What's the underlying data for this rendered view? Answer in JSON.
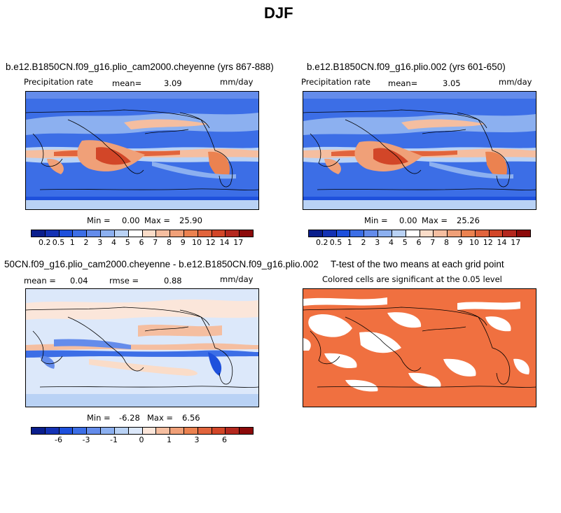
{
  "page_title": "DJF",
  "panel1": {
    "case": "b.e12.B1850CN.f09_g16.plio_cam2000.cheyenne (yrs 867-888)",
    "variable": "Precipitation rate",
    "mean_label": "mean=",
    "mean_value": "3.09",
    "units": "mm/day",
    "minmax_label": "Min =",
    "min_value": "0.00",
    "max_label": "Max =",
    "max_value": "25.90"
  },
  "panel2": {
    "case": "b.e12.B1850CN.f09_g16.plio.002 (yrs 601-650)",
    "variable": "Precipitation rate",
    "mean_label": "mean=",
    "mean_value": "3.05",
    "units": "mm/day",
    "minmax_label": "Min =",
    "min_value": "0.00",
    "max_label": "Max =",
    "max_value": "25.26"
  },
  "panel3": {
    "case": "50CN.f09_g16.plio_cam2000.cheyenne - b.e12.B1850CN.f09_g16.plio.002",
    "mean_label": "mean =",
    "mean_value": "0.04",
    "rmse_label": "rmse =",
    "rmse_value": "0.88",
    "units": "mm/day",
    "minmax_label": "Min =",
    "min_value": "-6.28",
    "max_label": "Max =",
    "max_value": "6.56"
  },
  "panel4": {
    "title": "T-test of the two means at each grid point",
    "subtitle": "Colored cells are significant at the 0.05 level"
  },
  "colorbar_abs": {
    "colors": [
      "#0a1e8c",
      "#1432b4",
      "#1e50dc",
      "#3c6ee6",
      "#648ceb",
      "#8cb0f0",
      "#b9d2f5",
      "#ffffff",
      "#fadcc8",
      "#f5bea0",
      "#f0a078",
      "#eb8250",
      "#e1643c",
      "#d24628",
      "#b4281e",
      "#8c0a0a"
    ],
    "ticks": [
      "0.2",
      "0.5",
      "1",
      "2",
      "3",
      "4",
      "5",
      "6",
      "7",
      "8",
      "9",
      "10",
      "12",
      "14",
      "17"
    ]
  },
  "colorbar_diff": {
    "colors": [
      "#0a1e8c",
      "#1432b4",
      "#1e50dc",
      "#3c6ee6",
      "#648ceb",
      "#8cb0f0",
      "#b9d2f5",
      "#dce8fa",
      "#fbe6da",
      "#f5bea0",
      "#f0a078",
      "#eb8250",
      "#e1643c",
      "#d24628",
      "#b4281e",
      "#8c0a0a"
    ],
    "ticks": [
      "-6",
      "-3",
      "-1",
      "0",
      "1",
      "3",
      "6"
    ]
  },
  "ttest_color": "#f07040"
}
